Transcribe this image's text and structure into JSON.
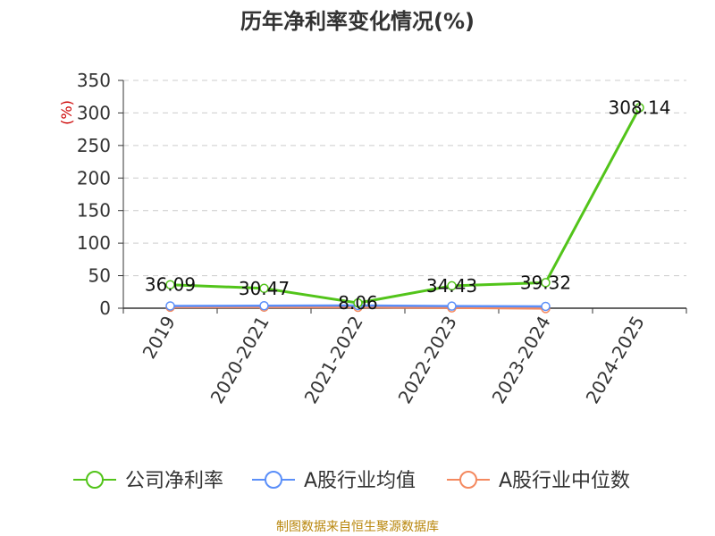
{
  "chart_data": {
    "type": "line",
    "title": "历年净利率变化情况(%)",
    "ylabel": "(%)",
    "xlabel": "",
    "ylim": [
      0,
      350
    ],
    "yticks": [
      0,
      50,
      100,
      150,
      200,
      250,
      300,
      350
    ],
    "categories": [
      "2019",
      "2020-2021",
      "2021-2022",
      "2022-2023",
      "2023-2024",
      "2024-2025"
    ],
    "grid": true,
    "legend_position": "bottom",
    "series": [
      {
        "name": "公司净利率",
        "color": "#52c41a",
        "values": [
          36.09,
          30.47,
          8.06,
          34.43,
          39.32,
          308.14
        ],
        "labels": [
          "36.09",
          "30.47",
          "8.06",
          "34.43",
          "39.32",
          "308.14"
        ]
      },
      {
        "name": "A股行业均值",
        "color": "#5b8ff9",
        "values": [
          3.5,
          3.8,
          4.2,
          3.2,
          2.8,
          null
        ]
      },
      {
        "name": "A股行业中位数",
        "color": "#f4895f",
        "values": [
          1.5,
          1.6,
          1.4,
          0.5,
          -0.5,
          null
        ]
      }
    ],
    "source": "制图数据来自恒生聚源数据库"
  }
}
